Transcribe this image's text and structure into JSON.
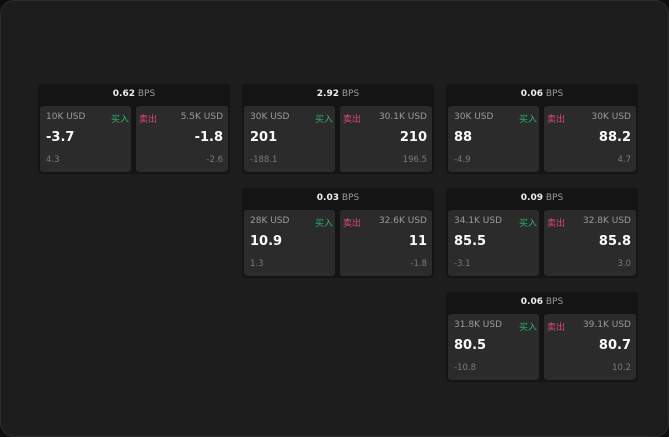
{
  "unit": "BPS",
  "buy_label": "买入",
  "sell_label": "卖出",
  "colors": {
    "buy": "#2fb36a",
    "sell": "#e0457a",
    "background": "#1d1d1d"
  },
  "cards": [
    {
      "spread": "0.62",
      "buy": {
        "size": "10K USD",
        "price": "-3.7",
        "change": "4.3"
      },
      "sell": {
        "size": "5.5K USD",
        "price": "-1.8",
        "change": "-2.6"
      }
    },
    {
      "spread": "2.92",
      "buy": {
        "size": "30K USD",
        "price": "201",
        "change": "-188.1"
      },
      "sell": {
        "size": "30.1K USD",
        "price": "210",
        "change": "196.5"
      }
    },
    {
      "spread": "0.06",
      "buy": {
        "size": "30K USD",
        "price": "88",
        "change": "-4.9"
      },
      "sell": {
        "size": "30K USD",
        "price": "88.2",
        "change": "4.7"
      }
    },
    {
      "spread": "0.03",
      "buy": {
        "size": "28K USD",
        "price": "10.9",
        "change": "1.3"
      },
      "sell": {
        "size": "32.6K USD",
        "price": "11",
        "change": "-1.8"
      }
    },
    {
      "spread": "0.09",
      "buy": {
        "size": "34.1K USD",
        "price": "85.5",
        "change": "-3.1"
      },
      "sell": {
        "size": "32.8K USD",
        "price": "85.8",
        "change": "3.0"
      }
    },
    {
      "spread": "0.06",
      "buy": {
        "size": "31.8K USD",
        "price": "80.5",
        "change": "-10.8"
      },
      "sell": {
        "size": "39.1K USD",
        "price": "80.7",
        "change": "10.2"
      }
    }
  ]
}
